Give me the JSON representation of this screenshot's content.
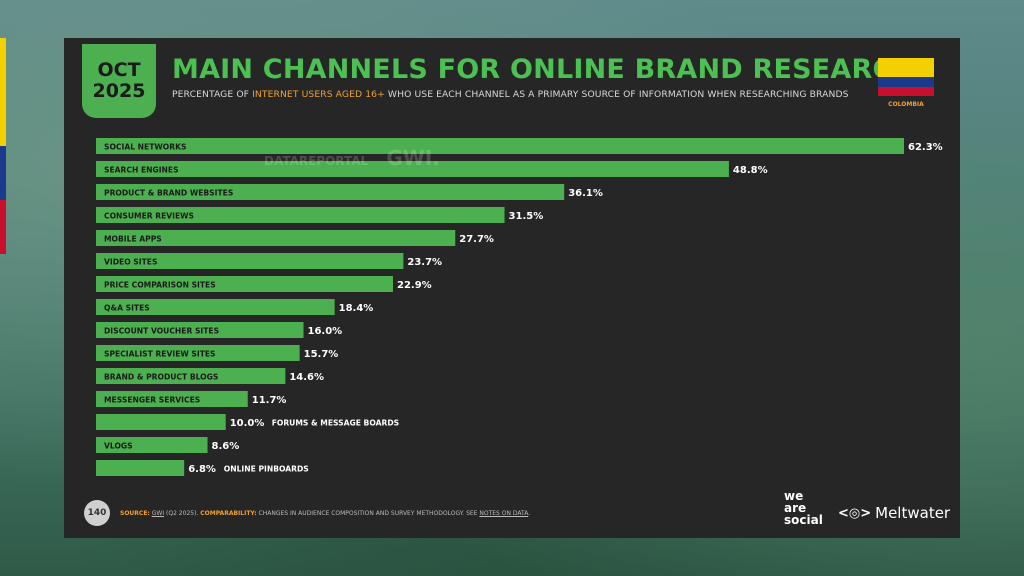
{
  "header": {
    "month": "OCT",
    "year": "2025",
    "title": "MAIN CHANNELS FOR ONLINE BRAND RESEARCH",
    "subtitle_pre": "PERCENTAGE OF ",
    "subtitle_highlight": "INTERNET USERS AGED 16+",
    "subtitle_post": " WHO USE EACH CHANNEL AS A PRIMARY SOURCE OF INFORMATION WHEN RESEARCHING BRANDS",
    "country": "COLOMBIA"
  },
  "watermark": {
    "datareportal": "DATAREPORTAL",
    "gwi": "GWI."
  },
  "chart_data": {
    "type": "bar",
    "orientation": "horizontal",
    "categories": [
      "SOCIAL NETWORKS",
      "SEARCH ENGINES",
      "PRODUCT & BRAND WEBSITES",
      "CONSUMER REVIEWS",
      "MOBILE APPS",
      "VIDEO SITES",
      "PRICE COMPARISON SITES",
      "Q&A SITES",
      "DISCOUNT VOUCHER SITES",
      "SPECIALIST REVIEW SITES",
      "BRAND & PRODUCT BLOGS",
      "MESSENGER SERVICES",
      "FORUMS & MESSAGE BOARDS",
      "VLOGS",
      "ONLINE PINBOARDS"
    ],
    "values": [
      62.3,
      48.8,
      36.1,
      31.5,
      27.7,
      23.7,
      22.9,
      18.4,
      16.0,
      15.7,
      14.6,
      11.7,
      10.0,
      8.6,
      6.8
    ],
    "value_labels": [
      "62.3%",
      "48.8%",
      "36.1%",
      "31.5%",
      "27.7%",
      "23.7%",
      "22.9%",
      "18.4%",
      "16.0%",
      "15.7%",
      "14.6%",
      "11.7%",
      "10.0%",
      "8.6%",
      "6.8%"
    ],
    "xlim": [
      0,
      62.3
    ],
    "bar_color": "#4cb050",
    "grid": false
  },
  "footer": {
    "page_number": "140",
    "source_label": "SOURCE:",
    "source_link": "GWI",
    "source_text": " (Q2 2025). ",
    "comparability_label": "COMPARABILITY:",
    "comparability_text": " CHANGES IN AUDIENCE COMPOSITION AND SURVEY METHODOLOGY. SEE ",
    "notes_link": "NOTES ON DATA",
    "notes_end": ".",
    "brand1_line1": "we",
    "brand1_line2": "are",
    "brand1_line3": "social",
    "brand2_logo": "<◎>",
    "brand2": "Meltwater"
  },
  "colors": {
    "accent_green": "#4cb050",
    "highlight_orange": "#f0a030",
    "panel": "#262626"
  }
}
